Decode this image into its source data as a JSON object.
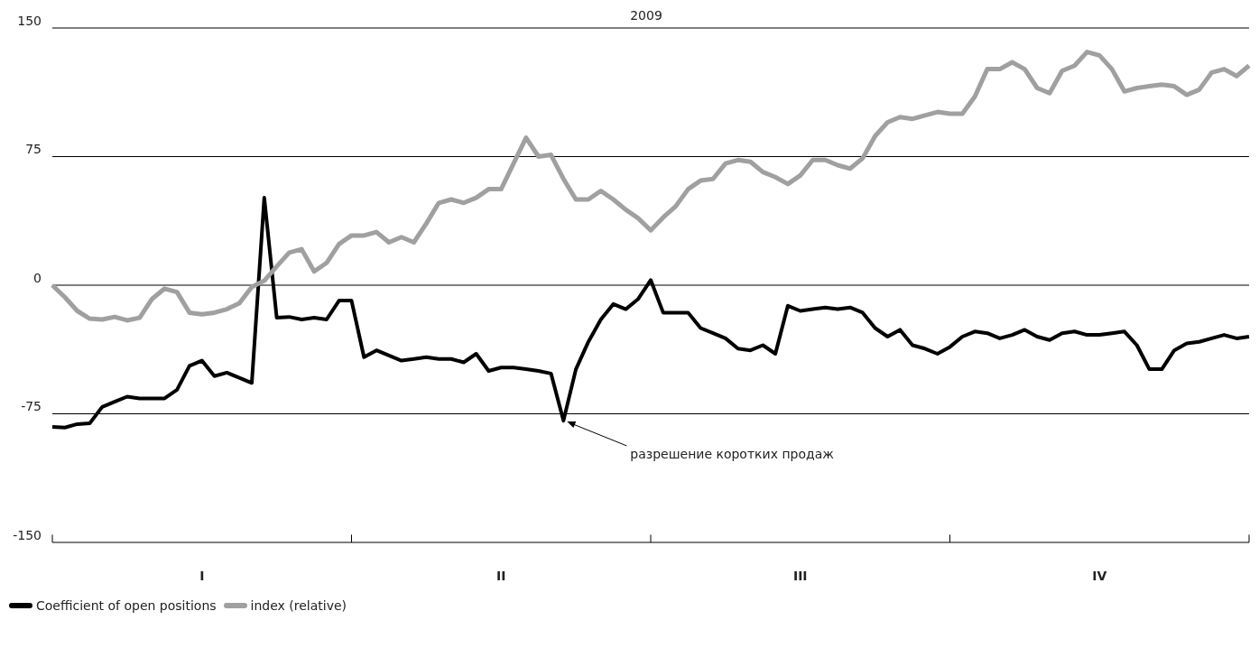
{
  "chart_data": {
    "type": "line",
    "title": "2009",
    "categories": [
      null,
      null,
      null,
      null,
      null,
      null,
      null,
      null,
      null,
      null,
      null,
      null,
      "I",
      null,
      null,
      null,
      null,
      null,
      null,
      null,
      null,
      null,
      null,
      null,
      null,
      null,
      null,
      null,
      null,
      null,
      null,
      null,
      null,
      null,
      null,
      null,
      "II",
      null,
      null,
      null,
      null,
      null,
      null,
      null,
      null,
      null,
      null,
      null,
      null,
      null,
      null,
      null,
      null,
      null,
      null,
      null,
      null,
      null,
      null,
      null,
      "III",
      null,
      null,
      null,
      null,
      null,
      null,
      null,
      null,
      null,
      null,
      null,
      null,
      null,
      null,
      null,
      null,
      null,
      null,
      null,
      null,
      null,
      null,
      null,
      "IV",
      null,
      null,
      null,
      null,
      null,
      null,
      null,
      null,
      null,
      null,
      null,
      null
    ],
    "ylim": [
      -150,
      150
    ],
    "yticks": [
      -150,
      -75,
      0,
      75,
      150
    ],
    "grid": "y",
    "legend": "bottom left",
    "marker": "none",
    "line_style": "solid",
    "annotations": [
      "разрешение коротких продаж"
    ],
    "series": [
      {
        "name": "Coefficient of open positions",
        "color": "#000000",
        "values": [
          -82.6,
          -83,
          -81,
          -80.5,
          -71,
          -68,
          -65,
          -66,
          -66,
          -66,
          -61,
          -47,
          -44,
          -53,
          -51,
          -54,
          -57,
          51,
          -19,
          -18.5,
          -20,
          -19,
          -20,
          -9,
          -9,
          -42,
          -38,
          -41,
          -44,
          -43,
          -42,
          -43,
          -43,
          -45,
          -40,
          -50,
          -48,
          -48,
          -49,
          -50,
          -51.5,
          -79,
          -49,
          -33,
          -20,
          -11,
          -14,
          -8,
          3,
          -16,
          -16,
          -16,
          -25,
          -28,
          -31,
          -37,
          -38,
          -35,
          -40,
          -12,
          -15,
          -14,
          -13,
          -14,
          -13,
          -16,
          -25,
          -30,
          -26,
          -35,
          -37,
          -40,
          -36,
          -30,
          -27,
          -28,
          -31,
          -29,
          -26,
          -30,
          -32,
          -28,
          -27,
          -29,
          -29,
          -28,
          -27,
          -35,
          -49,
          -49,
          -38,
          -34,
          -33,
          -31,
          -29,
          -31,
          -30
        ]
      },
      {
        "name": "index (relative)",
        "color": "#a0a0a0",
        "values": [
          0,
          -7,
          -15,
          -19.5,
          -20,
          -18.5,
          -20.5,
          -19,
          -8,
          -2,
          -4,
          -16,
          -17,
          -16,
          -14,
          -10.5,
          -1,
          2.6,
          11,
          19,
          21,
          8,
          13,
          24,
          29,
          29,
          31,
          25,
          28,
          25,
          36,
          48,
          50,
          48,
          51,
          56,
          56,
          71,
          86,
          75,
          76,
          62,
          50,
          50,
          55,
          50,
          44,
          39,
          32,
          39.5,
          46,
          56,
          61,
          62,
          71,
          73,
          72,
          66,
          63,
          59,
          64,
          73,
          73,
          70,
          68,
          74,
          87,
          95,
          98,
          97,
          99,
          101,
          100,
          100,
          110,
          126,
          126,
          130,
          126,
          115,
          112,
          125,
          128,
          136,
          134,
          126,
          113,
          115,
          116,
          117,
          116,
          111,
          114,
          124,
          126,
          122,
          128
        ]
      }
    ]
  }
}
